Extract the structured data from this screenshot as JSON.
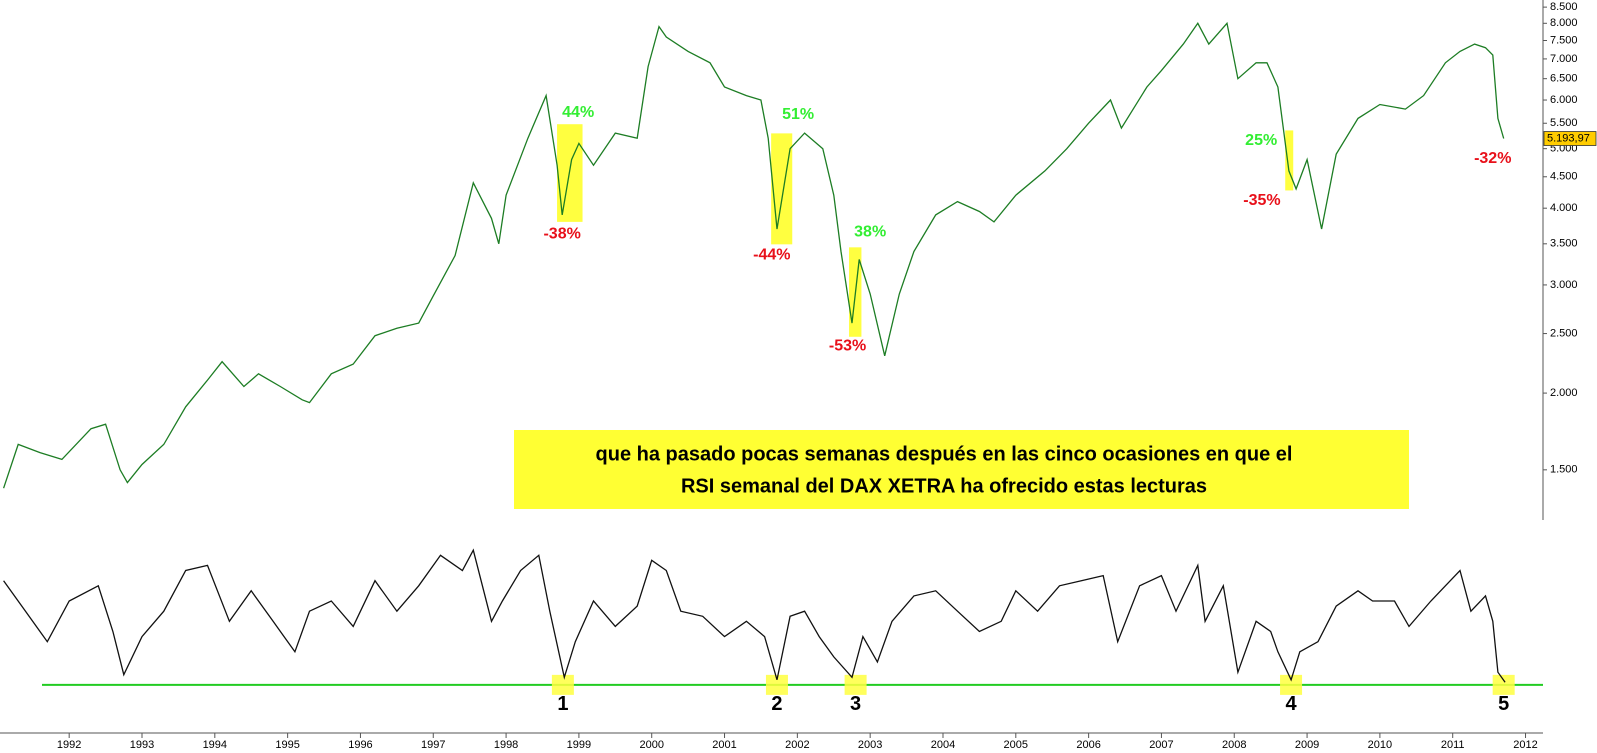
{
  "chart_data": [
    {
      "type": "line",
      "log_scale": true,
      "x": [
        1991.1,
        1991.3,
        1991.6,
        1991.9,
        1992.3,
        1992.5,
        1992.7,
        1992.8,
        1993.0,
        1993.3,
        1993.6,
        1993.9,
        1994.1,
        1994.4,
        1994.6,
        1994.9,
        1995.2,
        1995.3,
        1995.6,
        1995.9,
        1996.2,
        1996.5,
        1996.8,
        1997.0,
        1997.3,
        1997.55,
        1997.8,
        1997.9,
        1998.0,
        1998.3,
        1998.55,
        1998.7,
        1998.77,
        1998.9,
        1999.0,
        1999.2,
        1999.5,
        1999.8,
        1999.95,
        2000.1,
        2000.2,
        2000.5,
        2000.8,
        2001.0,
        2001.3,
        2001.5,
        2001.6,
        2001.72,
        2001.9,
        2002.1,
        2002.35,
        2002.5,
        2002.6,
        2002.75,
        2002.85,
        2003.0,
        2003.2,
        2003.4,
        2003.6,
        2003.9,
        2004.2,
        2004.5,
        2004.7,
        2005.0,
        2005.4,
        2005.7,
        2006.0,
        2006.3,
        2006.45,
        2006.8,
        2007.0,
        2007.3,
        2007.5,
        2007.65,
        2007.9,
        2008.05,
        2008.3,
        2008.45,
        2008.6,
        2008.75,
        2008.85,
        2009.0,
        2009.2,
        2009.4,
        2009.7,
        2010.0,
        2010.35,
        2010.6,
        2010.9,
        2011.1,
        2011.3,
        2011.45,
        2011.55,
        2011.62,
        2011.7
      ],
      "series": [
        {
          "name": "DAX XETRA",
          "color": "#1d7d24",
          "values": [
            1400,
            1650,
            1600,
            1560,
            1750,
            1780,
            1500,
            1430,
            1530,
            1650,
            1900,
            2100,
            2250,
            2050,
            2150,
            2050,
            1950,
            1930,
            2150,
            2230,
            2480,
            2550,
            2600,
            2880,
            3350,
            4400,
            3850,
            3500,
            4200,
            5200,
            6100,
            4700,
            3900,
            4800,
            5100,
            4700,
            5300,
            5200,
            6800,
            7900,
            7600,
            7200,
            6900,
            6300,
            6100,
            6000,
            5200,
            3700,
            5000,
            5300,
            5000,
            4200,
            3400,
            2600,
            3300,
            2900,
            2300,
            2900,
            3400,
            3900,
            4100,
            3950,
            3800,
            4200,
            4600,
            5000,
            5500,
            6000,
            5400,
            6300,
            6700,
            7400,
            8000,
            7400,
            8000,
            6500,
            6900,
            6900,
            6300,
            4600,
            4300,
            4800,
            3700,
            4900,
            5600,
            5900,
            5800,
            6100,
            6900,
            7200,
            7400,
            7300,
            7100,
            5600,
            5194
          ]
        }
      ],
      "xlim": [
        1991.05,
        2012.24
      ],
      "ylim": [
        1300,
        8730
      ],
      "yticks": [
        {
          "value": 1500,
          "label": "1.500"
        },
        {
          "value": 2000,
          "label": "2.000"
        },
        {
          "value": 2500,
          "label": "2.500"
        },
        {
          "value": 3000,
          "label": "3.000"
        },
        {
          "value": 3500,
          "label": "3.500"
        },
        {
          "value": 4000,
          "label": "4.000"
        },
        {
          "value": 4500,
          "label": "4.500"
        },
        {
          "value": 5000,
          "label": "5.000"
        },
        {
          "value": 5500,
          "label": "5.500"
        },
        {
          "value": 6000,
          "label": "6.000"
        },
        {
          "value": 6500,
          "label": "6.500"
        },
        {
          "value": 7000,
          "label": "7.000"
        },
        {
          "value": 7500,
          "label": "7.500"
        },
        {
          "value": 8000,
          "label": "8.000"
        },
        {
          "value": 8500,
          "label": "8.500"
        }
      ],
      "last_value": {
        "value": 5193.97,
        "label": "5.193,97"
      },
      "highlights": [
        {
          "x": [
            1998.7,
            1999.05
          ],
          "y": [
            5480,
            3800
          ]
        },
        {
          "x": [
            2001.64,
            2001.93
          ],
          "y": [
            5295,
            3493
          ]
        },
        {
          "x": [
            2002.71,
            2002.88
          ],
          "y": [
            3454,
            2470
          ]
        },
        {
          "x": [
            2008.7,
            2008.81
          ],
          "y": [
            5354,
            4275
          ]
        }
      ],
      "annotations": [
        {
          "text": "44%",
          "x": 1998.99,
          "y": 5715,
          "color": "#33ee33"
        },
        {
          "text": "-38%",
          "x": 1998.77,
          "y": 3628,
          "color": "#e8101a"
        },
        {
          "text": "51%",
          "x": 2002.01,
          "y": 5674,
          "color": "#33ee33"
        },
        {
          "text": "-44%",
          "x": 2001.65,
          "y": 3350,
          "color": "#e8101a"
        },
        {
          "text": "38%",
          "x": 2003.0,
          "y": 3658,
          "color": "#33ee33"
        },
        {
          "text": "-53%",
          "x": 2002.69,
          "y": 2384,
          "color": "#e8101a"
        },
        {
          "text": "25%",
          "x": 2008.37,
          "y": 5153,
          "color": "#33ee33"
        },
        {
          "text": "-35%",
          "x": 2008.38,
          "y": 4115,
          "color": "#e8101a"
        },
        {
          "text": "-32%",
          "x": 2011.55,
          "y": 4813,
          "color": "#e8101a"
        }
      ],
      "note": [
        "que ha pasado pocas semanas después en las cinco ocasiones en que el",
        "RSI semanal del DAX XETRA ha ofrecido estas lecturas"
      ]
    },
    {
      "type": "line",
      "x": [
        1991.1,
        1991.4,
        1991.7,
        1992.0,
        1992.4,
        1992.6,
        1992.75,
        1993.0,
        1993.3,
        1993.6,
        1993.9,
        1994.2,
        1994.5,
        1994.8,
        1995.1,
        1995.3,
        1995.6,
        1995.9,
        1996.2,
        1996.5,
        1996.8,
        1997.1,
        1997.4,
        1997.55,
        1997.8,
        1997.95,
        1998.2,
        1998.45,
        1998.6,
        1998.8,
        1998.95,
        1999.2,
        1999.5,
        1999.8,
        2000.0,
        2000.2,
        2000.4,
        2000.7,
        2001.0,
        2001.3,
        2001.55,
        2001.72,
        2001.9,
        2002.1,
        2002.3,
        2002.5,
        2002.75,
        2002.9,
        2003.1,
        2003.3,
        2003.6,
        2003.9,
        2004.2,
        2004.5,
        2004.8,
        2005.0,
        2005.3,
        2005.6,
        2005.9,
        2006.2,
        2006.4,
        2006.7,
        2007.0,
        2007.2,
        2007.5,
        2007.6,
        2007.85,
        2008.05,
        2008.3,
        2008.5,
        2008.6,
        2008.78,
        2008.9,
        2009.15,
        2009.4,
        2009.7,
        2009.9,
        2010.2,
        2010.4,
        2010.7,
        2010.9,
        2011.1,
        2011.25,
        2011.45,
        2011.55,
        2011.62,
        2011.72
      ],
      "series": [
        {
          "name": "RSI",
          "color": "#111111",
          "values": [
            71,
            59,
            47,
            63,
            69,
            51,
            34,
            49,
            59,
            75,
            77,
            55,
            67,
            55,
            43,
            59,
            63,
            53,
            71,
            59,
            69,
            81,
            75,
            83,
            55,
            63,
            75,
            81,
            59,
            33,
            47,
            63,
            53,
            61,
            79,
            75,
            59,
            57,
            49,
            55,
            49,
            32,
            57,
            59,
            49,
            41,
            33,
            49,
            39,
            55,
            65,
            67,
            59,
            51,
            55,
            67,
            59,
            69,
            71,
            73,
            47,
            69,
            73,
            59,
            77,
            55,
            69,
            35,
            55,
            51,
            43,
            32,
            43,
            47,
            61,
            67,
            63,
            63,
            53,
            63,
            69,
            75,
            59,
            65,
            55,
            35,
            31
          ]
        }
      ],
      "xlim": [
        1991.05,
        2012.24
      ],
      "ylim": [
        15,
        87
      ],
      "hline": {
        "value": 30,
        "color": "#22cc22"
      },
      "markers": [
        {
          "label": "1",
          "x": 1998.78
        },
        {
          "label": "2",
          "x": 2001.72
        },
        {
          "label": "3",
          "x": 2002.8
        },
        {
          "label": "4",
          "x": 2008.78
        },
        {
          "label": "5",
          "x": 2011.7
        }
      ],
      "xticks": [
        {
          "value": 1992,
          "label": "1992"
        },
        {
          "value": 1993,
          "label": "1993"
        },
        {
          "value": 1994,
          "label": "1994"
        },
        {
          "value": 1995,
          "label": "1995"
        },
        {
          "value": 1996,
          "label": "1996"
        },
        {
          "value": 1997,
          "label": "1997"
        },
        {
          "value": 1998,
          "label": "1998"
        },
        {
          "value": 1999,
          "label": "1999"
        },
        {
          "value": 2000,
          "label": "2000"
        },
        {
          "value": 2001,
          "label": "2001"
        },
        {
          "value": 2002,
          "label": "2002"
        },
        {
          "value": 2003,
          "label": "2003"
        },
        {
          "value": 2004,
          "label": "2004"
        },
        {
          "value": 2005,
          "label": "2005"
        },
        {
          "value": 2006,
          "label": "2006"
        },
        {
          "value": 2007,
          "label": "2007"
        },
        {
          "value": 2008,
          "label": "2008"
        },
        {
          "value": 2009,
          "label": "2009"
        },
        {
          "value": 2010,
          "label": "2010"
        },
        {
          "value": 2011,
          "label": "2011"
        },
        {
          "value": 2012,
          "label": "2012"
        }
      ]
    }
  ]
}
